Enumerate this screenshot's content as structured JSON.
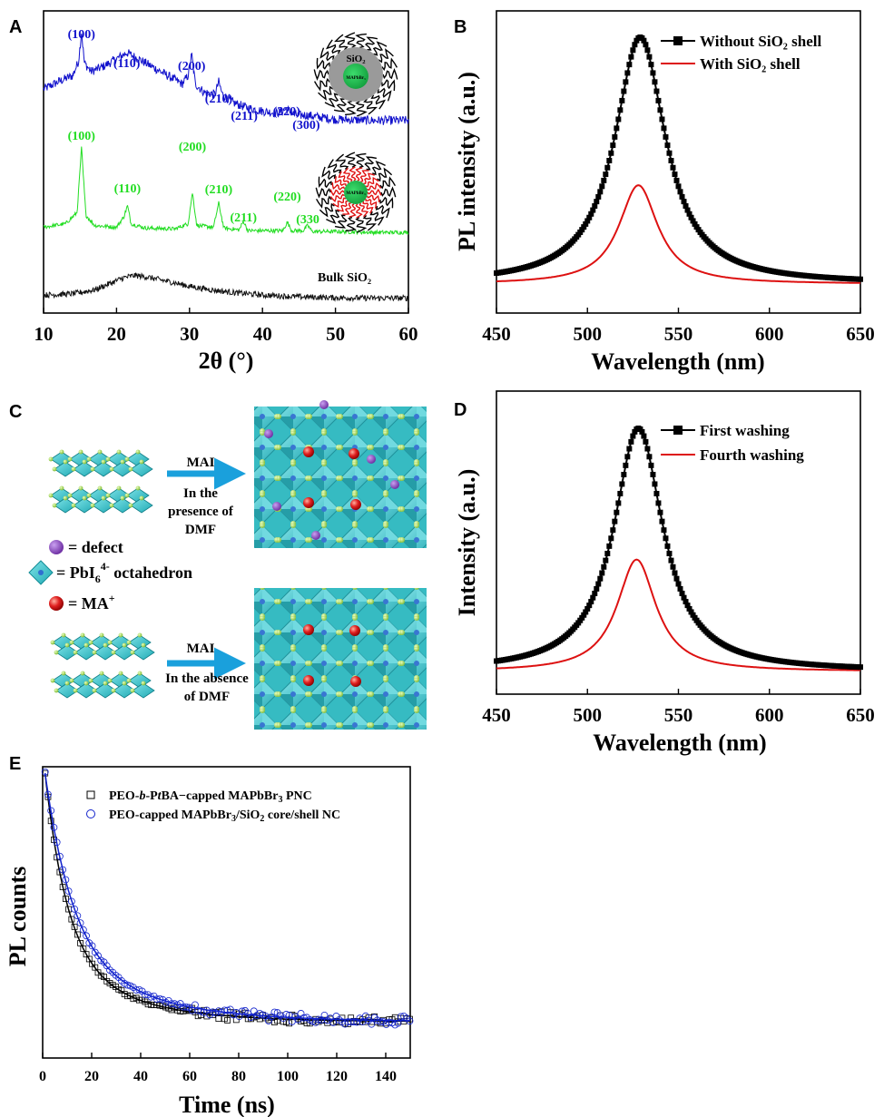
{
  "panels": {
    "a": "A",
    "b": "B",
    "c": "C",
    "d": "D",
    "e": "E"
  },
  "chart_data": [
    {
      "panel": "A",
      "type": "line",
      "xlabel": "2θ (°)",
      "ylabel": "",
      "xlim": [
        10,
        60
      ],
      "xticks": [
        "10",
        "20",
        "30",
        "40",
        "50",
        "60"
      ],
      "series": [
        {
          "color": "#1010cc",
          "x": [
            10,
            12,
            14,
            14.8,
            15.2,
            15.6,
            16.5,
            18,
            20,
            21.4,
            23,
            25,
            27,
            29,
            29.8,
            30.3,
            30.8,
            32,
            33.5,
            34.0,
            34.5,
            36,
            38,
            40,
            42,
            43.3,
            44.5,
            46,
            48,
            50,
            55,
            60
          ],
          "y": [
            0.45,
            0.52,
            0.58,
            0.72,
            1.0,
            0.7,
            0.62,
            0.66,
            0.74,
            0.8,
            0.74,
            0.66,
            0.58,
            0.5,
            0.58,
            0.78,
            0.5,
            0.42,
            0.4,
            0.52,
            0.4,
            0.32,
            0.27,
            0.24,
            0.22,
            0.26,
            0.2,
            0.2,
            0.18,
            0.16,
            0.15,
            0.15
          ]
        },
        {
          "color": "#22dd22",
          "x": [
            10,
            13,
            14.6,
            15.2,
            15.8,
            17,
            20,
            21.0,
            21.5,
            22.0,
            24,
            28,
            29.8,
            30.4,
            31.0,
            33.3,
            34.0,
            34.7,
            36.8,
            37.4,
            38.0,
            42.8,
            43.4,
            44.0,
            45.6,
            46.2,
            46.8,
            50,
            55,
            60
          ],
          "y": [
            0.08,
            0.12,
            0.25,
            1.0,
            0.22,
            0.1,
            0.08,
            0.2,
            0.33,
            0.12,
            0.07,
            0.06,
            0.12,
            0.48,
            0.1,
            0.08,
            0.36,
            0.07,
            0.05,
            0.15,
            0.04,
            0.04,
            0.14,
            0.04,
            0.04,
            0.1,
            0.03,
            0.03,
            0.02,
            0.02
          ]
        },
        {
          "color": "#111111",
          "x": [
            10,
            14,
            17,
            19,
            21,
            22.5,
            24,
            26,
            28,
            30,
            33,
            36,
            40,
            45,
            50,
            55,
            60
          ],
          "y": [
            0.1,
            0.13,
            0.22,
            0.36,
            0.5,
            0.55,
            0.52,
            0.45,
            0.38,
            0.3,
            0.22,
            0.16,
            0.1,
            0.06,
            0.04,
            0.03,
            0.03
          ]
        }
      ],
      "peak_labels": {
        "blue": [
          {
            "x": 15.2,
            "text": "(100)"
          },
          {
            "x": 21.4,
            "text": "(110)"
          },
          {
            "x": 30.3,
            "text": "(200)"
          },
          {
            "x": 34.0,
            "text": "(210)"
          },
          {
            "x": 37.5,
            "text": "(211)"
          },
          {
            "x": 43.3,
            "text": "(220)"
          },
          {
            "x": 46.0,
            "text": "(300)"
          }
        ],
        "green": [
          {
            "x": 15.2,
            "text": "(100)"
          },
          {
            "x": 21.5,
            "text": "(110)"
          },
          {
            "x": 30.4,
            "text": "(200)"
          },
          {
            "x": 34.0,
            "text": "(210)"
          },
          {
            "x": 37.4,
            "text": "(211)"
          },
          {
            "x": 43.4,
            "text": "(220)"
          },
          {
            "x": 46.2,
            "text": "(330"
          }
        ]
      },
      "annotations": {
        "bulk_label": "Bulk SiO₂",
        "shell_label": "SiO₂",
        "core_label": "MAPbBr₃"
      }
    },
    {
      "panel": "B",
      "type": "line",
      "xlabel": "Wavelength (nm)",
      "ylabel": "PL intensity (a.u.)",
      "xlim": [
        450,
        650
      ],
      "xticks": [
        "450",
        "500",
        "550",
        "600",
        "650"
      ],
      "series": [
        {
          "name": "Without SiO₂ shell",
          "color": "#000000",
          "marker": "square",
          "center": 529,
          "fwhm": 34,
          "peak": 1.0,
          "baseline": 0.0
        },
        {
          "name": "With SiO₂ shell",
          "color": "#dd1111",
          "marker": "none",
          "center": 528,
          "fwhm": 26,
          "peak": 0.4,
          "baseline": 0.0
        }
      ]
    },
    {
      "panel": "C",
      "type": "diagram",
      "labels": {
        "top_arrow": "MAI",
        "top_condition": [
          "In the",
          "presence of",
          "DMF"
        ],
        "bottom_arrow": "MAI",
        "bottom_condition": [
          "In the absence",
          "of DMF"
        ],
        "legend_defect": "= defect",
        "legend_octahedron_main": "= PbI",
        "legend_octahedron_sub": "6",
        "legend_octahedron_sup": "4-",
        "legend_octahedron_tail": " octahedron",
        "legend_ma": "= MA",
        "legend_ma_sup": "+"
      }
    },
    {
      "panel": "D",
      "type": "line",
      "xlabel": "Wavelength (nm)",
      "ylabel": "Intensity (a.u.)",
      "xlim": [
        450,
        650
      ],
      "xticks": [
        "450",
        "500",
        "550",
        "600",
        "650"
      ],
      "series": [
        {
          "name": "First washing",
          "color": "#000000",
          "marker": "square",
          "center": 528,
          "fwhm": 33,
          "peak": 1.0,
          "baseline": 0.0
        },
        {
          "name": "Fourth washing",
          "color": "#dd1111",
          "marker": "none",
          "center": 527,
          "fwhm": 26,
          "peak": 0.46,
          "baseline": 0.0
        }
      ]
    },
    {
      "panel": "E",
      "type": "scatter",
      "xlabel": "Time (ns)",
      "ylabel": "PL counts",
      "xlim": [
        0,
        150
      ],
      "xticks": [
        "0",
        "20",
        "40",
        "60",
        "80",
        "100",
        "120",
        "140"
      ],
      "series": [
        {
          "name": "PEO-b-PtBA−capped MAPbBr₃ PNC",
          "color": "#000000",
          "marker": "open-square",
          "tau1": 9,
          "a1": 0.72,
          "tau2": 30,
          "a2": 0.28
        },
        {
          "name": "PEO-capped MAPbBr₃/SiO₂ core/shell NC",
          "color": "#1122cc",
          "marker": "open-circle",
          "tau1": 11,
          "a1": 0.68,
          "tau2": 34,
          "a2": 0.32
        }
      ],
      "legend_parts": {
        "black": [
          "PEO-",
          "b",
          "-P",
          "t",
          "BA−capped MAPbBr",
          "3",
          " PNC"
        ],
        "blue": [
          "PEO-capped MAPbBr",
          "3",
          "/SiO",
          "2",
          " core/shell NC"
        ]
      }
    }
  ]
}
